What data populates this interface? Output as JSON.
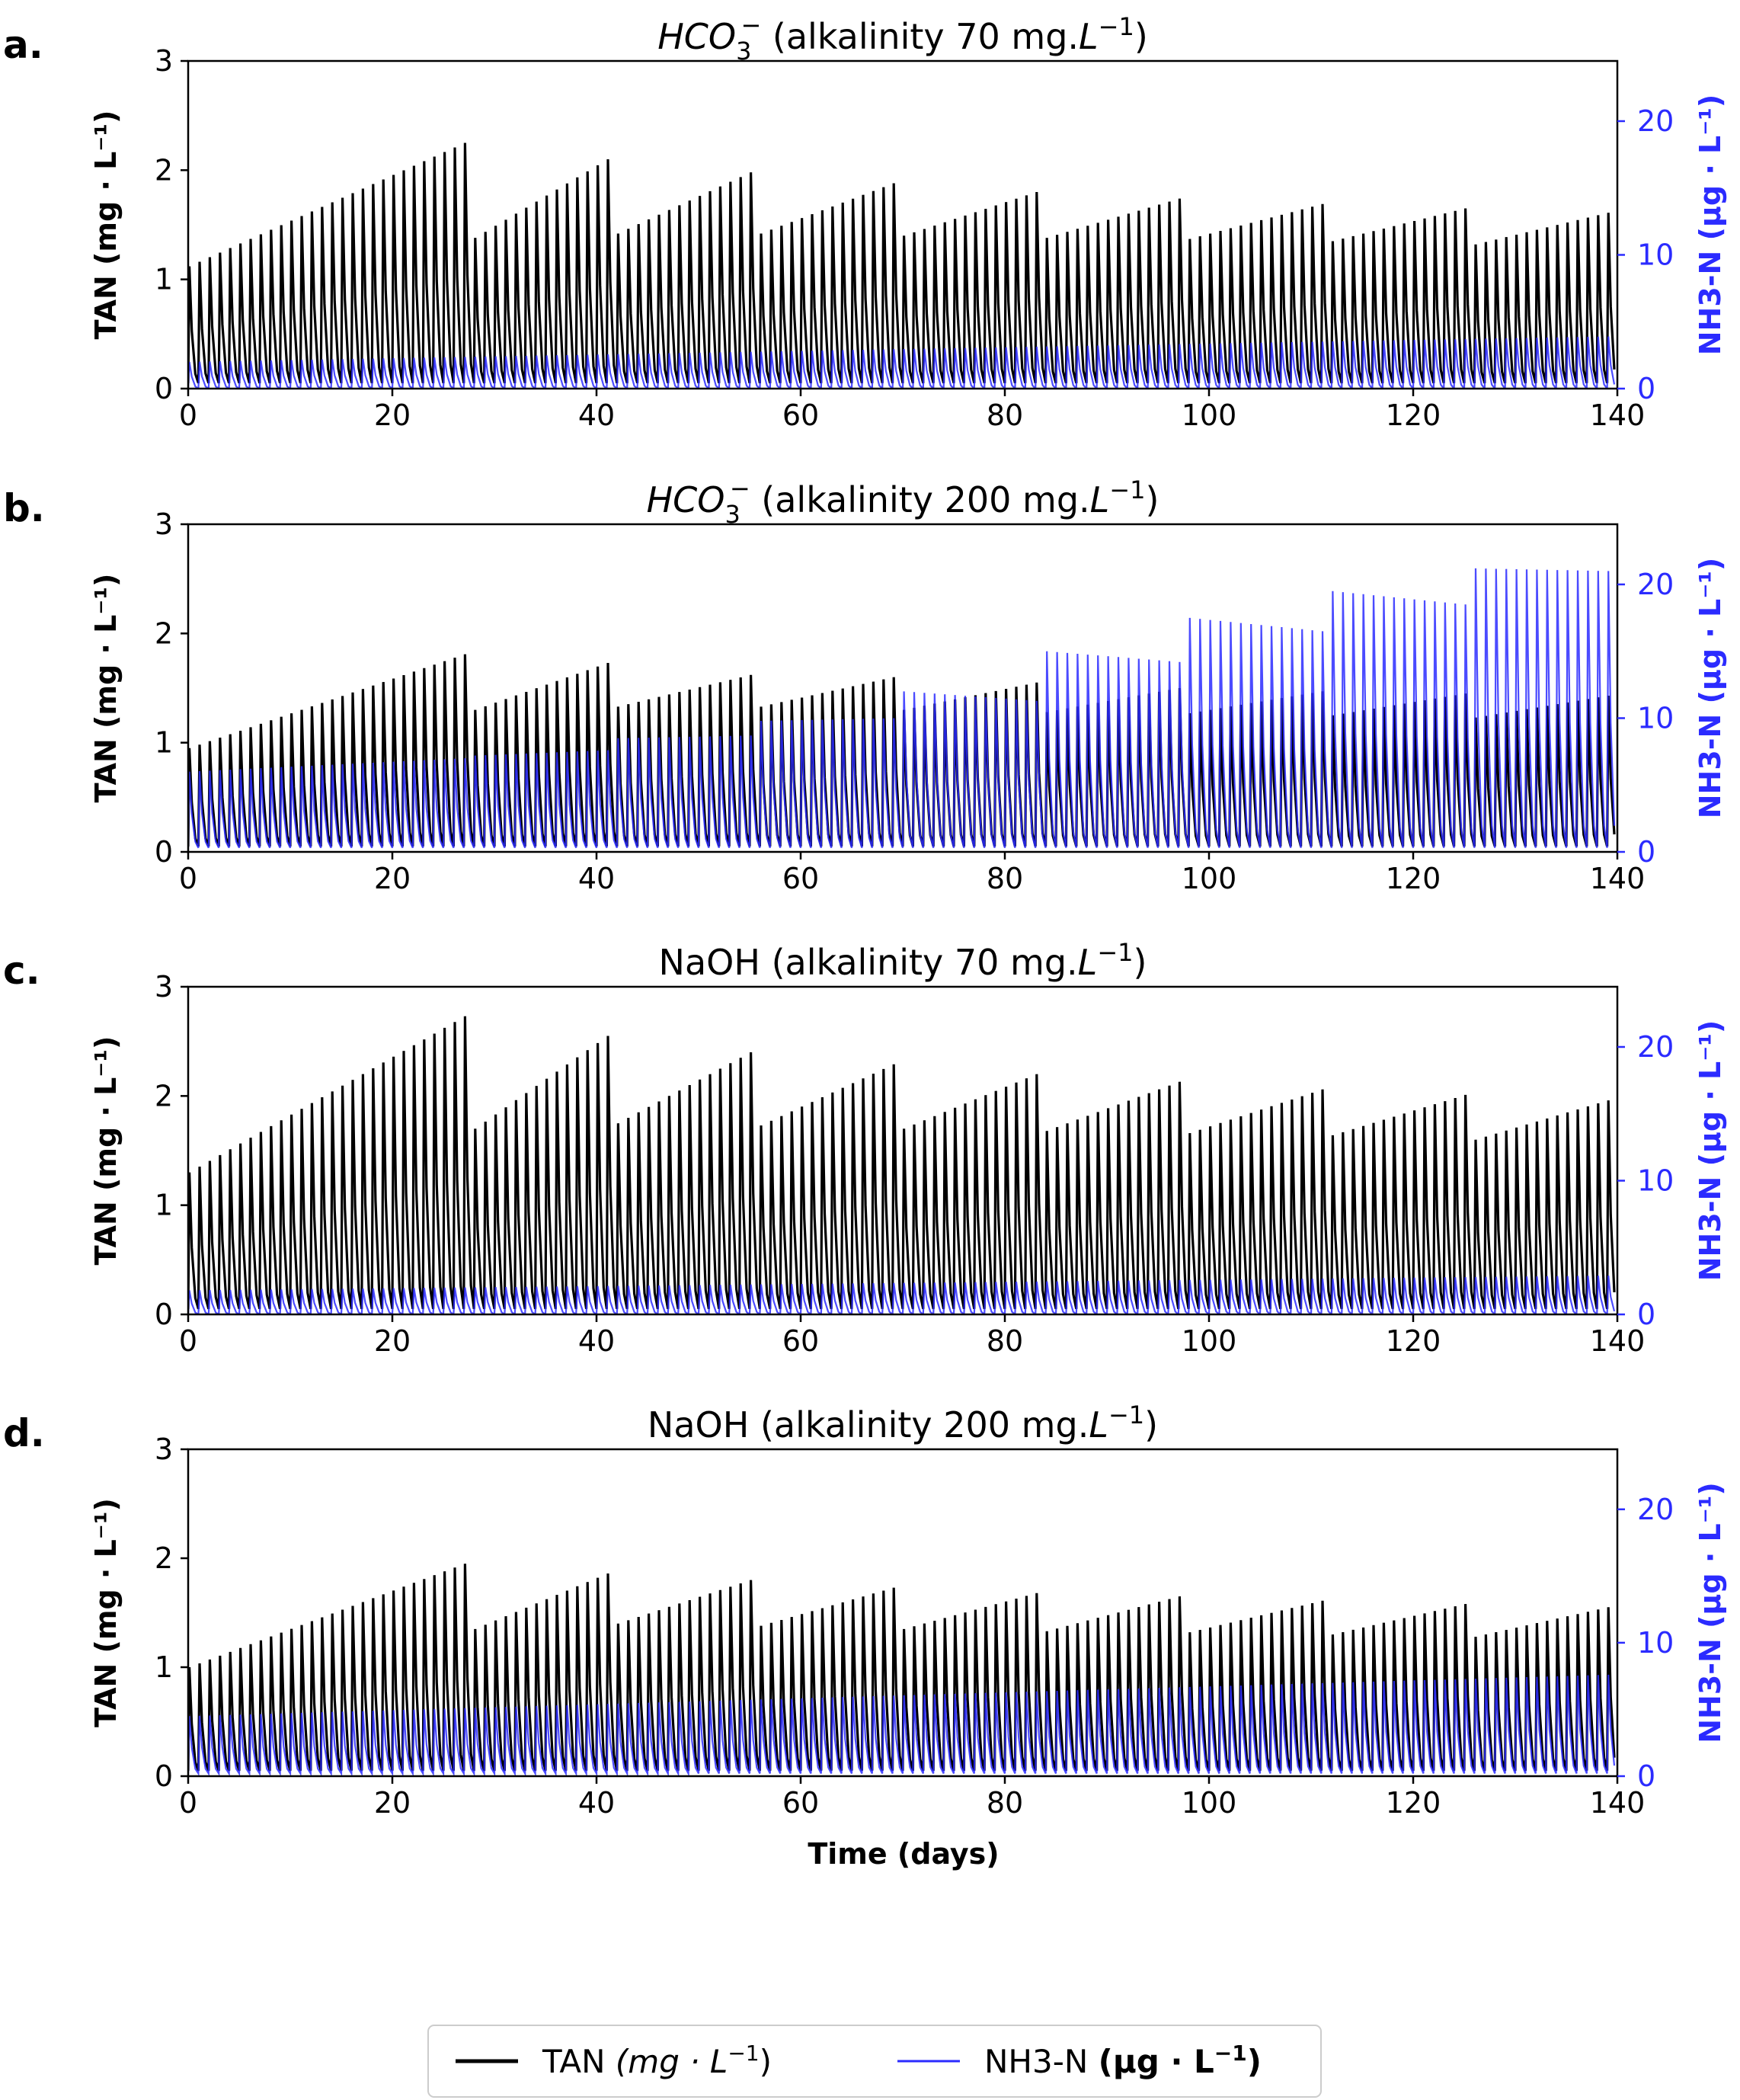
{
  "figure": {
    "xlabel": "Time (days)",
    "legend": {
      "position": "bottom-center",
      "entries": [
        {
          "label_prefix": "TAN ",
          "label_unit": "(mg · L",
          "label_sup": "−1",
          "label_close": ")",
          "color": "#000000"
        },
        {
          "label_prefix": "NH3-N ",
          "label_unit": "(µg · L",
          "label_sup": "−1",
          "label_close": ")",
          "color": "#2b2bff"
        }
      ]
    }
  },
  "chart_data": [
    {
      "type": "line",
      "panel_label": "a.",
      "title_species": "HCO",
      "title_sub": "3",
      "title_sup": "−",
      "title_main": "(alkalinity 70 mg.",
      "title_unit": "L",
      "title_unit_sup": "−1",
      "title_close": ")",
      "xlabel": "",
      "ylabel": "TAN (mg · L⁻¹)",
      "y2label": "NH3-N (µg · L⁻¹)",
      "xlim": [
        0,
        140
      ],
      "xticks": [
        "0",
        "20",
        "40",
        "60",
        "80",
        "100",
        "120",
        "140"
      ],
      "ylim": [
        0,
        3
      ],
      "yticks": [
        "0",
        "1",
        "2",
        "3"
      ],
      "y2lim": [
        0,
        24.5
      ],
      "y2ticks": [
        "0",
        "10",
        "20"
      ],
      "series": [
        {
          "name": "TAN",
          "axis": "left",
          "color": "#000000",
          "min": 0.05,
          "period_days": 1,
          "segments": [
            {
              "start": 0,
              "end": 28,
              "peak_start": 1.12,
              "peak_end": 2.25
            },
            {
              "start": 28,
              "end": 42,
              "peak_start": 1.38,
              "peak_end": 2.1
            },
            {
              "start": 42,
              "end": 56,
              "peak_start": 1.42,
              "peak_end": 1.98
            },
            {
              "start": 56,
              "end": 70,
              "peak_start": 1.42,
              "peak_end": 1.88
            },
            {
              "start": 70,
              "end": 84,
              "peak_start": 1.4,
              "peak_end": 1.8
            },
            {
              "start": 84,
              "end": 98,
              "peak_start": 1.38,
              "peak_end": 1.74
            },
            {
              "start": 98,
              "end": 112,
              "peak_start": 1.37,
              "peak_end": 1.69
            },
            {
              "start": 112,
              "end": 126,
              "peak_start": 1.35,
              "peak_end": 1.65
            },
            {
              "start": 126,
              "end": 140,
              "peak_start": 1.32,
              "peak_end": 1.61
            }
          ]
        },
        {
          "name": "NH3-N",
          "axis": "right",
          "color": "#2b2bff",
          "min": 0.0,
          "period_days": 1,
          "segments": [
            {
              "start": 0,
              "end": 140,
              "peak_start": 2.0,
              "peak_end": 3.9
            }
          ]
        }
      ]
    },
    {
      "type": "line",
      "panel_label": "b.",
      "title_species": "HCO",
      "title_sub": "3",
      "title_sup": "−",
      "title_main": "(alkalinity 200 mg.",
      "title_unit": "L",
      "title_unit_sup": "−1",
      "title_close": ")",
      "xlabel": "",
      "ylabel": "TAN (mg · L⁻¹)",
      "y2label": "NH3-N (µg · L⁻¹)",
      "xlim": [
        0,
        140
      ],
      "xticks": [
        "0",
        "20",
        "40",
        "60",
        "80",
        "100",
        "120",
        "140"
      ],
      "ylim": [
        0,
        3
      ],
      "yticks": [
        "0",
        "1",
        "2",
        "3"
      ],
      "y2lim": [
        0,
        24.5
      ],
      "y2ticks": [
        "0",
        "10",
        "20"
      ],
      "series": [
        {
          "name": "TAN",
          "axis": "left",
          "color": "#000000",
          "min": 0.05,
          "period_days": 1,
          "segments": [
            {
              "start": 0,
              "end": 28,
              "peak_start": 0.95,
              "peak_end": 1.81
            },
            {
              "start": 28,
              "end": 42,
              "peak_start": 1.3,
              "peak_end": 1.73
            },
            {
              "start": 42,
              "end": 56,
              "peak_start": 1.33,
              "peak_end": 1.62
            },
            {
              "start": 56,
              "end": 70,
              "peak_start": 1.33,
              "peak_end": 1.6
            },
            {
              "start": 70,
              "end": 84,
              "peak_start": 1.3,
              "peak_end": 1.55
            },
            {
              "start": 84,
              "end": 98,
              "peak_start": 1.28,
              "peak_end": 1.5
            },
            {
              "start": 98,
              "end": 112,
              "peak_start": 1.27,
              "peak_end": 1.47
            },
            {
              "start": 112,
              "end": 126,
              "peak_start": 1.25,
              "peak_end": 1.45
            },
            {
              "start": 126,
              "end": 140,
              "peak_start": 1.23,
              "peak_end": 1.43
            }
          ]
        },
        {
          "name": "NH3-N",
          "axis": "right",
          "color": "#2b2bff",
          "min": 0.3,
          "period_days": 1,
          "segments": [
            {
              "start": 0,
              "end": 28,
              "peak_start": 6.0,
              "peak_end": 7.0
            },
            {
              "start": 28,
              "end": 42,
              "peak_start": 7.2,
              "peak_end": 7.6
            },
            {
              "start": 42,
              "end": 56,
              "peak_start": 8.5,
              "peak_end": 8.7
            },
            {
              "start": 56,
              "end": 70,
              "peak_start": 9.8,
              "peak_end": 10.0
            },
            {
              "start": 70,
              "end": 84,
              "peak_start": 12.0,
              "peak_end": 11.3
            },
            {
              "start": 84,
              "end": 98,
              "peak_start": 15.0,
              "peak_end": 14.2
            },
            {
              "start": 98,
              "end": 112,
              "peak_start": 17.5,
              "peak_end": 16.5
            },
            {
              "start": 112,
              "end": 126,
              "peak_start": 19.5,
              "peak_end": 18.5
            },
            {
              "start": 126,
              "end": 140,
              "peak_start": 21.2,
              "peak_end": 21.0
            }
          ]
        }
      ]
    },
    {
      "type": "line",
      "panel_label": "c.",
      "title_species": "NaOH",
      "title_sub": "",
      "title_sup": "",
      "title_main": "(alkalinity 70 mg.",
      "title_unit": "L",
      "title_unit_sup": "−1",
      "title_close": ")",
      "xlabel": "",
      "ylabel": "TAN (mg · L⁻¹)",
      "y2label": "NH3-N (µg · L⁻¹)",
      "xlim": [
        0,
        140
      ],
      "xticks": [
        "0",
        "20",
        "40",
        "60",
        "80",
        "100",
        "120",
        "140"
      ],
      "ylim": [
        0,
        3
      ],
      "yticks": [
        "0",
        "1",
        "2",
        "3"
      ],
      "y2lim": [
        0,
        24.5
      ],
      "y2ticks": [
        "0",
        "10",
        "20"
      ],
      "series": [
        {
          "name": "TAN",
          "axis": "left",
          "color": "#000000",
          "min": 0.05,
          "period_days": 1,
          "segments": [
            {
              "start": 0,
              "end": 28,
              "peak_start": 1.3,
              "peak_end": 2.73
            },
            {
              "start": 28,
              "end": 42,
              "peak_start": 1.7,
              "peak_end": 2.55
            },
            {
              "start": 42,
              "end": 56,
              "peak_start": 1.75,
              "peak_end": 2.4
            },
            {
              "start": 56,
              "end": 70,
              "peak_start": 1.73,
              "peak_end": 2.29
            },
            {
              "start": 70,
              "end": 84,
              "peak_start": 1.7,
              "peak_end": 2.2
            },
            {
              "start": 84,
              "end": 98,
              "peak_start": 1.68,
              "peak_end": 2.13
            },
            {
              "start": 98,
              "end": 112,
              "peak_start": 1.66,
              "peak_end": 2.06
            },
            {
              "start": 112,
              "end": 126,
              "peak_start": 1.64,
              "peak_end": 2.01
            },
            {
              "start": 126,
              "end": 140,
              "peak_start": 1.6,
              "peak_end": 1.96
            }
          ]
        },
        {
          "name": "NH3-N",
          "axis": "right",
          "color": "#2b2bff",
          "min": 0.0,
          "period_days": 1,
          "segments": [
            {
              "start": 0,
              "end": 140,
              "peak_start": 1.8,
              "peak_end": 2.9
            }
          ]
        }
      ]
    },
    {
      "type": "line",
      "panel_label": "d.",
      "title_species": "NaOH",
      "title_sub": "",
      "title_sup": "",
      "title_main": "(alkalinity 200 mg.",
      "title_unit": "L",
      "title_unit_sup": "−1",
      "title_close": ")",
      "xlabel": "Time (days)",
      "ylabel": "TAN (mg · L⁻¹)",
      "y2label": "NH3-N (µg · L⁻¹)",
      "xlim": [
        0,
        140
      ],
      "xticks": [
        "0",
        "20",
        "40",
        "60",
        "80",
        "100",
        "120",
        "140"
      ],
      "ylim": [
        0,
        3
      ],
      "yticks": [
        "0",
        "1",
        "2",
        "3"
      ],
      "y2lim": [
        0,
        24.5
      ],
      "y2ticks": [
        "0",
        "10",
        "20"
      ],
      "series": [
        {
          "name": "TAN",
          "axis": "left",
          "color": "#000000",
          "min": 0.05,
          "period_days": 1,
          "segments": [
            {
              "start": 0,
              "end": 28,
              "peak_start": 1.0,
              "peak_end": 1.95
            },
            {
              "start": 28,
              "end": 42,
              "peak_start": 1.35,
              "peak_end": 1.86
            },
            {
              "start": 42,
              "end": 56,
              "peak_start": 1.4,
              "peak_end": 1.8
            },
            {
              "start": 56,
              "end": 70,
              "peak_start": 1.38,
              "peak_end": 1.73
            },
            {
              "start": 70,
              "end": 84,
              "peak_start": 1.35,
              "peak_end": 1.68
            },
            {
              "start": 84,
              "end": 98,
              "peak_start": 1.33,
              "peak_end": 1.65
            },
            {
              "start": 98,
              "end": 112,
              "peak_start": 1.32,
              "peak_end": 1.61
            },
            {
              "start": 112,
              "end": 126,
              "peak_start": 1.3,
              "peak_end": 1.58
            },
            {
              "start": 126,
              "end": 140,
              "peak_start": 1.28,
              "peak_end": 1.55
            }
          ]
        },
        {
          "name": "NH3-N",
          "axis": "right",
          "color": "#2b2bff",
          "min": 0.2,
          "period_days": 1,
          "segments": [
            {
              "start": 0,
              "end": 140,
              "peak_start": 4.5,
              "peak_end": 7.6
            }
          ]
        }
      ]
    }
  ]
}
